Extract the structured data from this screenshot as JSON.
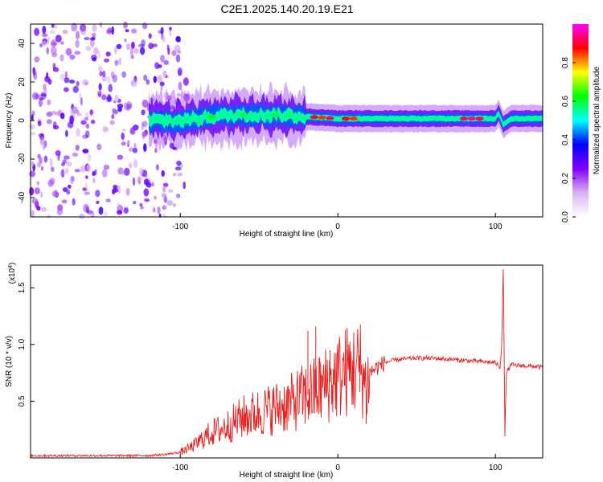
{
  "title": "C2E1.2025.140.20.19.E21",
  "chart_data": [
    {
      "type": "heatmap",
      "name": "spectrogram",
      "xlabel": "Height of straight line (km)",
      "ylabel": "Frequency (Hz)",
      "xlim": [
        -195,
        130
      ],
      "ylim": [
        -50,
        50
      ],
      "xticks": [
        -100,
        0,
        100
      ],
      "xtick_labels": [
        "-100",
        "0",
        "100"
      ],
      "yticks": [
        -40,
        -20,
        0,
        20,
        40
      ],
      "ytick_labels": [
        "-40",
        "-20",
        "0",
        "20",
        "40"
      ],
      "colorbar": {
        "label": "Normalized spectral amplitude",
        "range": [
          0,
          1
        ],
        "ticks": [
          0,
          0.2,
          0.4,
          0.6,
          0.8
        ],
        "tick_labels": [
          "0.0",
          "0.2",
          "0.4",
          "0.6",
          "0.8"
        ],
        "colors": [
          "#ffffff",
          "#d9b3f0",
          "#8000ff",
          "#0000ff",
          "#00ffff",
          "#00ff00",
          "#ffff00",
          "#ff0000",
          "#ff00ff"
        ]
      },
      "line_centre_hz": [
        [
          -120,
          0
        ],
        [
          -100,
          0
        ],
        [
          -80,
          2
        ],
        [
          -60,
          3
        ],
        [
          -40,
          3
        ],
        [
          -20,
          2
        ],
        [
          0,
          1
        ],
        [
          20,
          1
        ],
        [
          40,
          1
        ],
        [
          60,
          1
        ],
        [
          80,
          1
        ],
        [
          100,
          1
        ],
        [
          102,
          4
        ],
        [
          105,
          -2
        ],
        [
          110,
          1
        ],
        [
          130,
          1
        ]
      ]
    },
    {
      "type": "line",
      "name": "snr",
      "xlabel": "Height of straight line (km)",
      "ylabel": "SNR (10 * v/v)",
      "yscale_label": "(x10",
      "yscale_exp": "4",
      "xlim": [
        -195,
        130
      ],
      "ylim": [
        0,
        1.7
      ],
      "xticks": [
        -100,
        0,
        100
      ],
      "xtick_labels": [
        "-100",
        "0",
        "100"
      ],
      "yticks": [
        0.5,
        1.0,
        1.5
      ],
      "ytick_labels": [
        "0.5",
        "1.0",
        "1.5"
      ],
      "color": "#e82020",
      "series": [
        {
          "name": "SNR",
          "x": [
            -195,
            -180,
            -160,
            -140,
            -120,
            -110,
            -100,
            -95,
            -90,
            -85,
            -80,
            -75,
            -70,
            -65,
            -60,
            -55,
            -50,
            -45,
            -40,
            -35,
            -30,
            -25,
            -20,
            -15,
            -10,
            -5,
            0,
            5,
            10,
            15,
            18,
            20,
            25,
            30,
            35,
            40,
            50,
            60,
            70,
            80,
            90,
            100,
            103,
            104,
            105,
            106,
            107,
            110,
            120,
            130
          ],
          "y": [
            0.02,
            0.02,
            0.02,
            0.02,
            0.02,
            0.03,
            0.05,
            0.08,
            0.12,
            0.18,
            0.22,
            0.25,
            0.28,
            0.32,
            0.36,
            0.38,
            0.4,
            0.42,
            0.44,
            0.46,
            0.48,
            0.52,
            0.55,
            0.58,
            0.62,
            0.67,
            0.72,
            0.76,
            0.78,
            0.8,
            0.6,
            0.75,
            0.8,
            0.84,
            0.86,
            0.87,
            0.88,
            0.88,
            0.87,
            0.86,
            0.85,
            0.84,
            0.8,
            1.0,
            1.7,
            0.2,
            0.75,
            0.82,
            0.81,
            0.8
          ]
        }
      ],
      "spikes": [
        {
          "x": -19,
          "y": 1.12
        },
        {
          "x": -14,
          "y": 1.16
        },
        {
          "x": -8,
          "y": 0.82
        },
        {
          "x": -5,
          "y": 0.95
        },
        {
          "x": 5,
          "y": 0.95
        },
        {
          "x": 10,
          "y": 1.0
        },
        {
          "x": 14,
          "y": 0.58
        },
        {
          "x": 18,
          "y": 0.3
        }
      ]
    }
  ]
}
